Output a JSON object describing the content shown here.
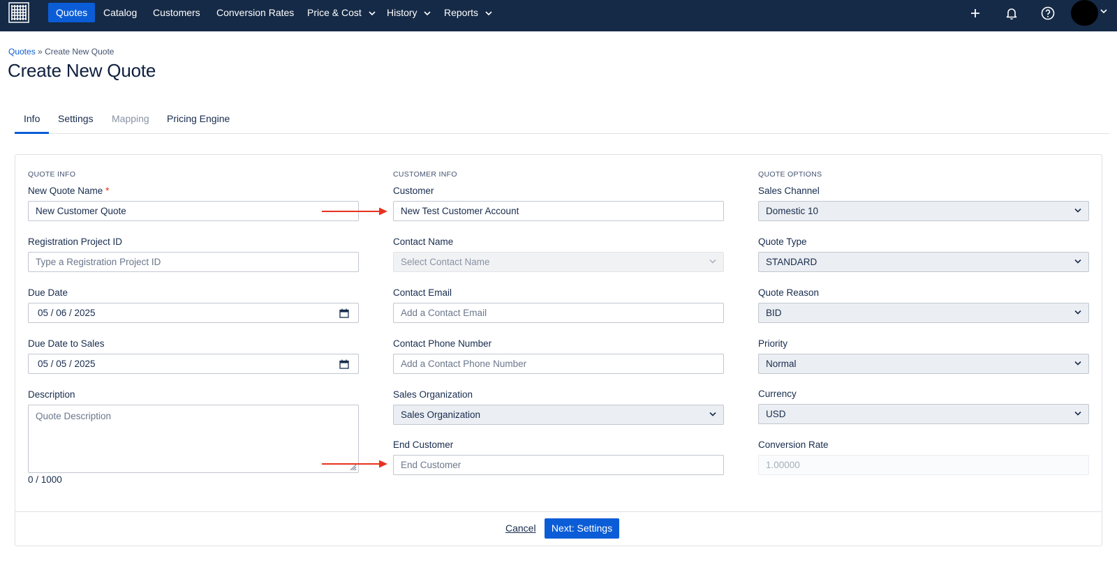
{
  "nav": {
    "items": [
      {
        "label": "Quotes"
      },
      {
        "label": "Catalog"
      },
      {
        "label": "Customers"
      },
      {
        "label": "Conversion Rates"
      },
      {
        "label": "Price & Cost"
      },
      {
        "label": "History"
      },
      {
        "label": "Reports"
      }
    ],
    "icons": [
      "grid-logo-icon",
      "plus-icon",
      "bell-icon",
      "help-icon",
      "avatar",
      "chevron-down-icon"
    ]
  },
  "breadcrumb": {
    "link": "Quotes",
    "separator": "»",
    "current": "Create New Quote"
  },
  "page_title": "Create New Quote",
  "tabs": [
    {
      "label": "Info"
    },
    {
      "label": "Settings"
    },
    {
      "label": "Mapping"
    },
    {
      "label": "Pricing Engine"
    }
  ],
  "quote_info": {
    "section_title": "QUOTE INFO",
    "name_label": "New Quote Name",
    "name_required": "*",
    "name_value": "New Customer Quote",
    "registration_label": "Registration Project ID",
    "registration_placeholder": "Type a Registration Project ID",
    "due_date_label": "Due Date",
    "due_date_value": "05 / 06 / 2025",
    "due_date_sales_label": "Due Date to Sales",
    "due_date_sales_value": "05 / 05 / 2025",
    "description_label": "Description",
    "description_placeholder": "Quote Description",
    "description_counter": "0 / 1000"
  },
  "customer_info": {
    "section_title": "CUSTOMER INFO",
    "customer_label": "Customer",
    "customer_value": "New Test Customer Account",
    "contact_name_label": "Contact Name",
    "contact_name_placeholder": "Select Contact Name",
    "contact_email_label": "Contact Email",
    "contact_email_placeholder": "Add a Contact Email",
    "contact_phone_label": "Contact Phone Number",
    "contact_phone_placeholder": "Add a Contact Phone Number",
    "sales_org_label": "Sales Organization",
    "sales_org_value": "Sales Organization",
    "end_customer_label": "End Customer",
    "end_customer_placeholder": "End Customer"
  },
  "quote_options": {
    "section_title": "QUOTE OPTIONS",
    "sales_channel_label": "Sales Channel",
    "sales_channel_value": "Domestic 10",
    "quote_type_label": "Quote Type",
    "quote_type_value": "STANDARD",
    "quote_reason_label": "Quote Reason",
    "quote_reason_value": "BID",
    "priority_label": "Priority",
    "priority_value": "Normal",
    "currency_label": "Currency",
    "currency_value": "USD",
    "conversion_rate_label": "Conversion Rate",
    "conversion_rate_value": "1.00000"
  },
  "footer": {
    "cancel_label": "Cancel",
    "next_label": "Next: Settings"
  },
  "colors": {
    "nav_bg": "#152a46",
    "accent": "#0b5dd7",
    "annotation_arrow": "#e8321e"
  }
}
